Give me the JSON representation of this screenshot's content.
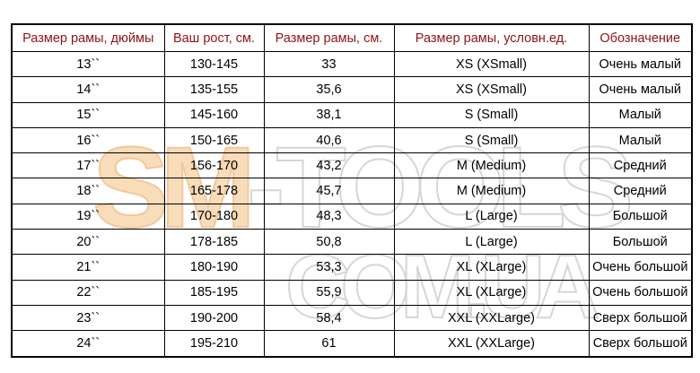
{
  "watermark": {
    "orange_text": "SM",
    "outline_text": "-TOOLS",
    "line2_text": "COM.UA",
    "orange_color": "#f9dcba",
    "orange_stroke_color": "#f0c99c",
    "outline_color": "#d6d6d6"
  },
  "table": {
    "header_text_color": "#8e1414",
    "columns": [
      "Размер рамы, дюймы",
      "Ваш рост, см.",
      "Размер рамы, см.",
      "Размер рамы, условн.ед.",
      "Обозначение"
    ],
    "rows": [
      [
        "13``",
        "130-145",
        "33",
        "XS (XSmall)",
        "Очень малый"
      ],
      [
        "14``",
        "135-155",
        "35,6",
        "XS (XSmall)",
        "Очень малый"
      ],
      [
        "15``",
        "145-160",
        "38,1",
        "S (Small)",
        "Малый"
      ],
      [
        "16``",
        "150-165",
        "40,6",
        "S (Small)",
        "Малый"
      ],
      [
        "17``",
        "156-170",
        "43,2",
        "M (Medium)",
        "Средний"
      ],
      [
        "18``",
        "165-178",
        "45,7",
        "M (Medium)",
        "Средний"
      ],
      [
        "19``",
        "170-180",
        "48,3",
        "L (Large)",
        "Большой"
      ],
      [
        "20``",
        "178-185",
        "50,8",
        "L (Large)",
        "Большой"
      ],
      [
        "21``",
        "180-190",
        "53,3",
        "XL (XLarge)",
        "Очень большой"
      ],
      [
        "22``",
        "185-195",
        "55,9",
        "XL (XLarge)",
        "Очень большой"
      ],
      [
        "23``",
        "190-200",
        "58,4",
        "XXL (XXLarge)",
        "Сверх большой"
      ],
      [
        "24``",
        "195-210",
        "61",
        "XXL (XXLarge)",
        "Сверх большой"
      ]
    ]
  }
}
